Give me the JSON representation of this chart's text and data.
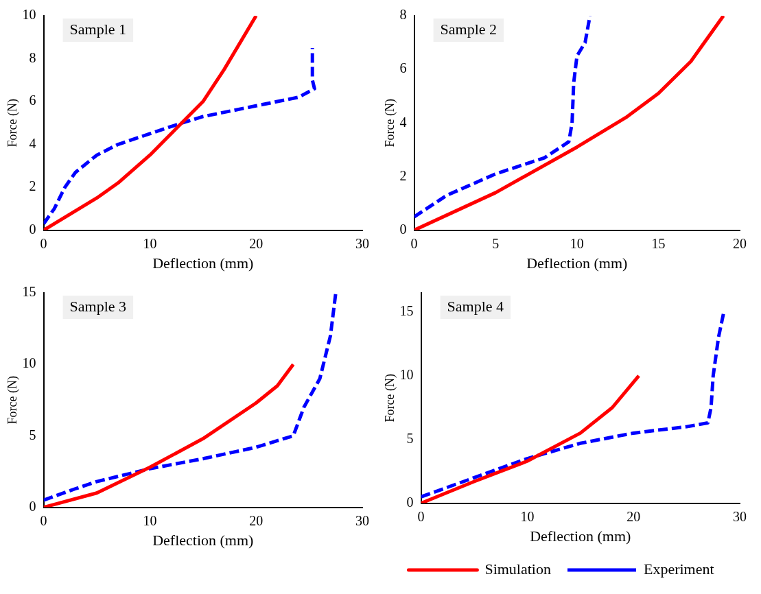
{
  "chart_data": [
    {
      "type": "line",
      "title": "Sample 1",
      "xlabel": "Deflection (mm)",
      "ylabel": "Force (N)",
      "xlim": [
        0,
        30
      ],
      "xticks": [
        0,
        10,
        20,
        30
      ],
      "ylim": [
        0,
        10
      ],
      "yticks": [
        0,
        2,
        4,
        6,
        8,
        10
      ],
      "grid": false,
      "marker": "none",
      "series": [
        {
          "color": "#ff0000",
          "line_style": "solid",
          "x": [
            0,
            5,
            7,
            10,
            13,
            15,
            17,
            20
          ],
          "values": [
            0,
            1.5,
            2.2,
            3.5,
            5,
            6,
            7.5,
            10
          ]
        },
        {
          "color": "#0000ff",
          "line_style": "dashed",
          "x": [
            0,
            1,
            2,
            3,
            5,
            7,
            10,
            13,
            15,
            20,
            24,
            25.5,
            25.3,
            25.3
          ],
          "values": [
            0.3,
            1,
            2,
            2.7,
            3.5,
            4,
            4.5,
            5,
            5.3,
            5.8,
            6.2,
            6.6,
            7,
            8.5
          ]
        }
      ]
    },
    {
      "type": "line",
      "title": "Sample 2",
      "xlabel": "Deflection (mm)",
      "ylabel": "Force (N)",
      "xlim": [
        0,
        20
      ],
      "xticks": [
        0,
        5,
        10,
        15,
        20
      ],
      "ylim": [
        0,
        8
      ],
      "yticks": [
        0,
        2,
        4,
        6,
        8
      ],
      "grid": false,
      "marker": "none",
      "series": [
        {
          "color": "#ff0000",
          "line_style": "solid",
          "x": [
            0,
            5,
            10,
            13,
            15,
            17,
            19
          ],
          "values": [
            0,
            1.4,
            3.1,
            4.2,
            5.1,
            6.3,
            8
          ]
        },
        {
          "color": "#0000ff",
          "line_style": "dashed",
          "x": [
            0,
            2,
            5,
            8,
            9.5,
            9.7,
            9.8,
            10,
            10.5,
            10.8
          ],
          "values": [
            0.5,
            1.3,
            2.1,
            2.7,
            3.3,
            4,
            5.5,
            6.5,
            7,
            8
          ]
        }
      ]
    },
    {
      "type": "line",
      "title": "Sample 3",
      "xlabel": "Deflection (mm)",
      "ylabel": "Force (N)",
      "xlim": [
        0,
        30
      ],
      "xticks": [
        0,
        10,
        20,
        30
      ],
      "ylim": [
        0,
        15
      ],
      "yticks": [
        0,
        5,
        10,
        15
      ],
      "grid": false,
      "marker": "none",
      "series": [
        {
          "color": "#ff0000",
          "line_style": "solid",
          "x": [
            0,
            5,
            10,
            15,
            20,
            22,
            23.5
          ],
          "values": [
            0,
            1,
            2.8,
            4.8,
            7.3,
            8.5,
            10
          ]
        },
        {
          "color": "#0000ff",
          "line_style": "dashed",
          "x": [
            0,
            3,
            5,
            10,
            15,
            20,
            23.5,
            24.5,
            26,
            27,
            27.5
          ],
          "values": [
            0.5,
            1.3,
            1.8,
            2.7,
            3.4,
            4.2,
            5,
            7,
            9,
            12,
            15
          ]
        }
      ]
    },
    {
      "type": "line",
      "title": "Sample 4",
      "xlabel": "Deflection (mm)",
      "ylabel": "Force (N)",
      "xlim": [
        0,
        30
      ],
      "xticks": [
        0,
        10,
        20,
        30
      ],
      "ylim": [
        0,
        16.5
      ],
      "yticks": [
        0,
        5,
        10,
        15
      ],
      "grid": false,
      "legend": "bottom",
      "marker": "none",
      "series": [
        {
          "name": "Simulation",
          "color": "#ff0000",
          "line_style": "solid",
          "x": [
            0,
            5,
            10,
            15,
            18,
            20.5
          ],
          "values": [
            0,
            1.7,
            3.3,
            5.5,
            7.5,
            10
          ]
        },
        {
          "name": "Experiment",
          "color": "#0000ff",
          "line_style": "dashed",
          "x": [
            0,
            5,
            10,
            15,
            20,
            25,
            27,
            27.3,
            27.5,
            28,
            28.5
          ],
          "values": [
            0.5,
            2,
            3.5,
            4.7,
            5.5,
            6,
            6.3,
            7.5,
            10,
            13,
            15
          ]
        }
      ]
    }
  ]
}
